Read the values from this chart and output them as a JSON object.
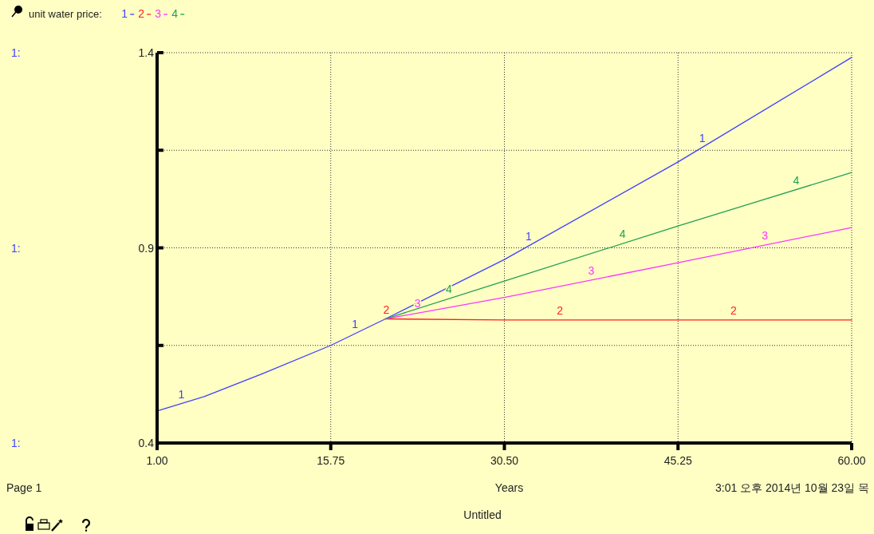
{
  "chart_data": {
    "type": "line",
    "legend_title": "unit water price:",
    "xlabel": "Years",
    "x": [
      1,
      5,
      10,
      15.75,
      20.4,
      30.5,
      45.25,
      60
    ],
    "xlim": [
      1,
      60
    ],
    "xticks": [
      {
        "value": 1,
        "label": "1.00"
      },
      {
        "value": 15.75,
        "label": "15.75"
      },
      {
        "value": 30.5,
        "label": "30.50"
      },
      {
        "value": 45.25,
        "label": "45.25"
      },
      {
        "value": 60,
        "label": "60.00"
      }
    ],
    "ylim": [
      0.4,
      1.4
    ],
    "yticks": [
      0.4,
      {
        "value": 0.65,
        "label": null
      },
      0.9,
      {
        "value": 1.15,
        "label": null
      },
      1.4
    ],
    "series": [
      {
        "name": "1",
        "color": "#4040ff",
        "values": [
          0.482,
          0.519,
          0.578,
          0.65,
          0.718,
          0.87,
          1.12,
          1.388
        ]
      },
      {
        "name": "2",
        "color": "#ff2020",
        "values": [
          null,
          null,
          null,
          null,
          0.718,
          0.715,
          0.715,
          0.715
        ]
      },
      {
        "name": "3",
        "color": "#ff33ff",
        "values": [
          null,
          null,
          null,
          null,
          0.718,
          0.773,
          0.862,
          0.952
        ]
      },
      {
        "name": "4",
        "color": "#20a050",
        "values": [
          null,
          null,
          null,
          null,
          0.718,
          0.815,
          0.956,
          1.093
        ]
      }
    ],
    "grid": true,
    "line_style": "solid",
    "legend": "top left",
    "annotations": [
      "1:",
      "1:",
      "1:",
      "Page 1",
      "3:01 오후  2014년 10월 23일 목",
      "Untitled"
    ]
  }
}
